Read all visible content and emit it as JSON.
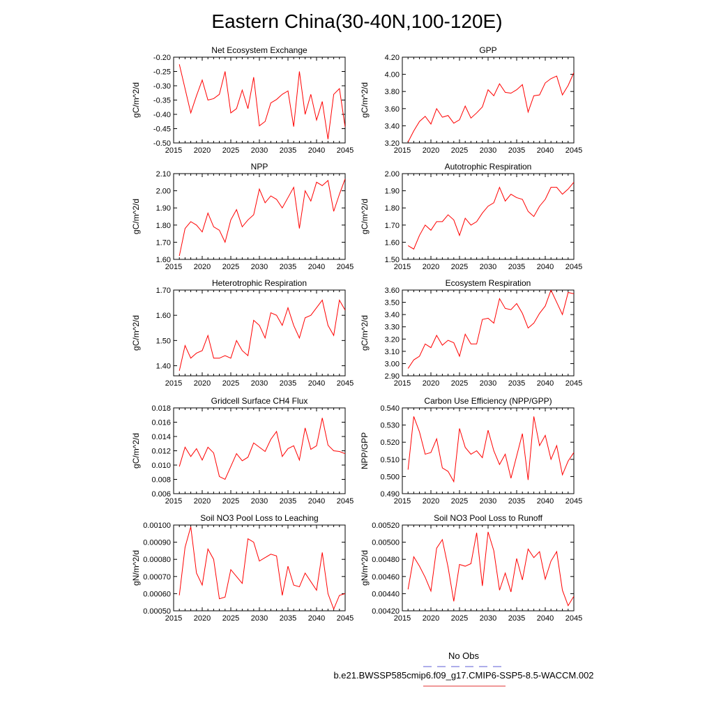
{
  "title": "Eastern China(30-40N,100-120E)",
  "legend": {
    "entries": [
      {
        "label": "No Obs",
        "color": "#5b5bd6",
        "style": "dashed"
      },
      {
        "label": "b.e21.BWSSP585cmip6.f09_g17.CMIP6-SSP5-8.5-WACCM.002",
        "color": "#e03030",
        "style": "solid"
      }
    ]
  },
  "chart_data": [
    {
      "type": "line",
      "title": "Net Ecosystem Exchange",
      "ylabel": "gC/m^2/d",
      "xlim": [
        2015,
        2045
      ],
      "ylim": [
        -0.5,
        -0.2
      ],
      "xticks": [
        2015,
        2020,
        2025,
        2030,
        2035,
        2040,
        2045
      ],
      "yticks": [
        "-0.20",
        "-0.25",
        "-0.30",
        "-0.35",
        "-0.40",
        "-0.45",
        "-0.50"
      ],
      "color": "#ff0000",
      "x": [
        2016,
        2017,
        2018,
        2019,
        2020,
        2021,
        2022,
        2023,
        2024,
        2025,
        2026,
        2027,
        2028,
        2029,
        2030,
        2031,
        2032,
        2033,
        2034,
        2035,
        2036,
        2037,
        2038,
        2039,
        2040,
        2041,
        2042,
        2043,
        2044,
        2045
      ],
      "values": [
        -0.225,
        -0.31,
        -0.395,
        -0.335,
        -0.28,
        -0.35,
        -0.345,
        -0.33,
        -0.25,
        -0.395,
        -0.38,
        -0.315,
        -0.38,
        -0.27,
        -0.44,
        -0.425,
        -0.36,
        -0.348,
        -0.33,
        -0.318,
        -0.443,
        -0.25,
        -0.4,
        -0.33,
        -0.42,
        -0.355,
        -0.487,
        -0.33,
        -0.31,
        -0.445
      ]
    },
    {
      "type": "line",
      "title": "GPP",
      "ylabel": "gC/m^2/d",
      "xlim": [
        2015,
        2045
      ],
      "ylim": [
        3.2,
        4.2
      ],
      "xticks": [
        2015,
        2020,
        2025,
        2030,
        2035,
        2040,
        2045
      ],
      "yticks": [
        "3.20",
        "3.40",
        "3.60",
        "3.80",
        "4.00",
        "4.20"
      ],
      "color": "#ff0000",
      "x": [
        2016,
        2017,
        2018,
        2019,
        2020,
        2021,
        2022,
        2023,
        2024,
        2025,
        2026,
        2027,
        2028,
        2029,
        2030,
        2031,
        2032,
        2033,
        2034,
        2035,
        2036,
        2037,
        2038,
        2039,
        2040,
        2041,
        2042,
        2043,
        2044,
        2045
      ],
      "values": [
        3.21,
        3.34,
        3.45,
        3.51,
        3.42,
        3.6,
        3.5,
        3.52,
        3.43,
        3.47,
        3.63,
        3.49,
        3.55,
        3.62,
        3.82,
        3.75,
        3.89,
        3.79,
        3.78,
        3.82,
        3.88,
        3.56,
        3.75,
        3.76,
        3.9,
        3.95,
        3.98,
        3.76,
        3.87,
        4.02
      ]
    },
    {
      "type": "line",
      "title": "NPP",
      "ylabel": "gC/m^2/d",
      "xlim": [
        2015,
        2045
      ],
      "ylim": [
        1.6,
        2.1
      ],
      "xticks": [
        2015,
        2020,
        2025,
        2030,
        2035,
        2040,
        2045
      ],
      "yticks": [
        "1.60",
        "1.70",
        "1.80",
        "1.90",
        "2.00",
        "2.10"
      ],
      "color": "#ff0000",
      "x": [
        2016,
        2017,
        2018,
        2019,
        2020,
        2021,
        2022,
        2023,
        2024,
        2025,
        2026,
        2027,
        2028,
        2029,
        2030,
        2031,
        2032,
        2033,
        2034,
        2035,
        2036,
        2037,
        2038,
        2039,
        2040,
        2041,
        2042,
        2043,
        2044,
        2045
      ],
      "values": [
        1.62,
        1.78,
        1.82,
        1.8,
        1.76,
        1.87,
        1.79,
        1.77,
        1.7,
        1.83,
        1.89,
        1.79,
        1.83,
        1.86,
        2.01,
        1.93,
        1.97,
        1.95,
        1.9,
        1.96,
        2.02,
        1.78,
        2.0,
        1.94,
        2.05,
        2.03,
        2.06,
        1.88,
        1.98,
        2.07
      ]
    },
    {
      "type": "line",
      "title": "Autotrophic Respiration",
      "ylabel": "gC/m^2/d",
      "xlim": [
        2015,
        2045
      ],
      "ylim": [
        1.5,
        2.0
      ],
      "xticks": [
        2015,
        2020,
        2025,
        2030,
        2035,
        2040,
        2045
      ],
      "yticks": [
        "1.50",
        "1.60",
        "1.70",
        "1.80",
        "1.90",
        "2.00"
      ],
      "color": "#ff0000",
      "x": [
        2016,
        2017,
        2018,
        2019,
        2020,
        2021,
        2022,
        2023,
        2024,
        2025,
        2026,
        2027,
        2028,
        2029,
        2030,
        2031,
        2032,
        2033,
        2034,
        2035,
        2036,
        2037,
        2038,
        2039,
        2040,
        2041,
        2042,
        2043,
        2044,
        2045
      ],
      "values": [
        1.58,
        1.56,
        1.64,
        1.7,
        1.67,
        1.72,
        1.72,
        1.76,
        1.73,
        1.64,
        1.74,
        1.7,
        1.72,
        1.77,
        1.81,
        1.83,
        1.92,
        1.84,
        1.88,
        1.86,
        1.85,
        1.78,
        1.75,
        1.81,
        1.85,
        1.92,
        1.92,
        1.88,
        1.91,
        1.95
      ]
    },
    {
      "type": "line",
      "title": "Heterotrophic Respiration",
      "ylabel": "gC/m^2/d",
      "xlim": [
        2015,
        2045
      ],
      "ylim": [
        1.36,
        1.7
      ],
      "xticks": [
        2015,
        2020,
        2025,
        2030,
        2035,
        2040,
        2045
      ],
      "yticks": [
        "1.40",
        "1.50",
        "1.60",
        "1.70"
      ],
      "color": "#ff0000",
      "x": [
        2016,
        2017,
        2018,
        2019,
        2020,
        2021,
        2022,
        2023,
        2024,
        2025,
        2026,
        2027,
        2028,
        2029,
        2030,
        2031,
        2032,
        2033,
        2034,
        2035,
        2036,
        2037,
        2038,
        2039,
        2040,
        2041,
        2042,
        2043,
        2044,
        2045
      ],
      "values": [
        1.38,
        1.48,
        1.43,
        1.45,
        1.46,
        1.52,
        1.43,
        1.43,
        1.44,
        1.43,
        1.5,
        1.46,
        1.44,
        1.58,
        1.56,
        1.51,
        1.61,
        1.6,
        1.56,
        1.63,
        1.56,
        1.51,
        1.59,
        1.6,
        1.63,
        1.66,
        1.56,
        1.52,
        1.66,
        1.62
      ]
    },
    {
      "type": "line",
      "title": "Ecosystem Respiration",
      "ylabel": "gC/m^2/d",
      "xlim": [
        2015,
        2045
      ],
      "ylim": [
        2.9,
        3.6
      ],
      "xticks": [
        2015,
        2020,
        2025,
        2030,
        2035,
        2040,
        2045
      ],
      "yticks": [
        "2.90",
        "3.00",
        "3.10",
        "3.20",
        "3.30",
        "3.40",
        "3.50",
        "3.60"
      ],
      "color": "#ff0000",
      "x": [
        2016,
        2017,
        2018,
        2019,
        2020,
        2021,
        2022,
        2023,
        2024,
        2025,
        2026,
        2027,
        2028,
        2029,
        2030,
        2031,
        2032,
        2033,
        2034,
        2035,
        2036,
        2037,
        2038,
        2039,
        2040,
        2041,
        2042,
        2043,
        2044,
        2045
      ],
      "values": [
        2.96,
        3.03,
        3.06,
        3.16,
        3.13,
        3.23,
        3.15,
        3.19,
        3.17,
        3.06,
        3.24,
        3.16,
        3.16,
        3.36,
        3.37,
        3.33,
        3.53,
        3.45,
        3.44,
        3.49,
        3.41,
        3.29,
        3.33,
        3.41,
        3.47,
        3.6,
        3.5,
        3.4,
        3.58,
        3.57
      ]
    },
    {
      "type": "line",
      "title": "Gridcell Surface CH4 Flux",
      "ylabel": "gC/m^2/d",
      "xlim": [
        2015,
        2045
      ],
      "ylim": [
        0.006,
        0.018
      ],
      "xticks": [
        2015,
        2020,
        2025,
        2030,
        2035,
        2040,
        2045
      ],
      "yticks": [
        "0.006",
        "0.008",
        "0.010",
        "0.012",
        "0.014",
        "0.016",
        "0.018"
      ],
      "color": "#ff0000",
      "x": [
        2016,
        2017,
        2018,
        2019,
        2020,
        2021,
        2022,
        2023,
        2024,
        2025,
        2026,
        2027,
        2028,
        2029,
        2030,
        2031,
        2032,
        2033,
        2034,
        2035,
        2036,
        2037,
        2038,
        2039,
        2040,
        2041,
        2042,
        2043,
        2044,
        2045
      ],
      "values": [
        0.0098,
        0.0125,
        0.0112,
        0.0123,
        0.0107,
        0.0125,
        0.0117,
        0.0084,
        0.008,
        0.0098,
        0.0116,
        0.0106,
        0.0111,
        0.0131,
        0.0125,
        0.0119,
        0.0136,
        0.0147,
        0.0112,
        0.0123,
        0.0127,
        0.0107,
        0.0152,
        0.0122,
        0.0127,
        0.0166,
        0.0128,
        0.012,
        0.0119,
        0.0116
      ]
    },
    {
      "type": "line",
      "title": "Carbon Use Efficiency (NPP/GPP)",
      "ylabel": "NPP/GPP",
      "xlim": [
        2015,
        2045
      ],
      "ylim": [
        0.49,
        0.54
      ],
      "xticks": [
        2015,
        2020,
        2025,
        2030,
        2035,
        2040,
        2045
      ],
      "yticks": [
        "0.490",
        "0.500",
        "0.510",
        "0.520",
        "0.530",
        "0.540"
      ],
      "color": "#ff0000",
      "x": [
        2016,
        2017,
        2018,
        2019,
        2020,
        2021,
        2022,
        2023,
        2024,
        2025,
        2026,
        2027,
        2028,
        2029,
        2030,
        2031,
        2032,
        2033,
        2034,
        2035,
        2036,
        2037,
        2038,
        2039,
        2040,
        2041,
        2042,
        2043,
        2044,
        2045
      ],
      "values": [
        0.504,
        0.535,
        0.526,
        0.513,
        0.514,
        0.522,
        0.505,
        0.503,
        0.497,
        0.528,
        0.517,
        0.513,
        0.515,
        0.511,
        0.527,
        0.515,
        0.507,
        0.513,
        0.499,
        0.512,
        0.525,
        0.498,
        0.535,
        0.518,
        0.524,
        0.51,
        0.518,
        0.501,
        0.509,
        0.514
      ]
    },
    {
      "type": "line",
      "title": "Soil NO3 Pool Loss to Leaching",
      "ylabel": "gN/m^2/d",
      "xlim": [
        2015,
        2045
      ],
      "ylim": [
        0.0005,
        0.001
      ],
      "xticks": [
        2015,
        2020,
        2025,
        2030,
        2035,
        2040,
        2045
      ],
      "yticks": [
        "0.00050",
        "0.00060",
        "0.00070",
        "0.00080",
        "0.00090",
        "0.00100"
      ],
      "color": "#ff0000",
      "x": [
        2016,
        2017,
        2018,
        2019,
        2020,
        2021,
        2022,
        2023,
        2024,
        2025,
        2026,
        2027,
        2028,
        2029,
        2030,
        2031,
        2032,
        2033,
        2034,
        2035,
        2036,
        2037,
        2038,
        2039,
        2040,
        2041,
        2042,
        2043,
        2044,
        2045
      ],
      "values": [
        0.00059,
        0.00087,
        0.00099,
        0.00072,
        0.00065,
        0.00086,
        0.0008,
        0.00057,
        0.00058,
        0.00074,
        0.0007,
        0.00066,
        0.00092,
        0.0009,
        0.00079,
        0.00081,
        0.00083,
        0.00082,
        0.00059,
        0.00076,
        0.00065,
        0.00064,
        0.00072,
        0.00067,
        0.00062,
        0.00084,
        0.0006,
        0.00051,
        0.00059,
        0.0006
      ]
    },
    {
      "type": "line",
      "title": "Soil NO3 Pool Loss to Runoff",
      "ylabel": "gN/m^2/d",
      "xlim": [
        2015,
        2045
      ],
      "ylim": [
        0.0042,
        0.0052
      ],
      "xticks": [
        2015,
        2020,
        2025,
        2030,
        2035,
        2040,
        2045
      ],
      "yticks": [
        "0.00420",
        "0.00440",
        "0.00460",
        "0.00480",
        "0.00500",
        "0.00520"
      ],
      "color": "#ff0000",
      "x": [
        2016,
        2017,
        2018,
        2019,
        2020,
        2021,
        2022,
        2023,
        2024,
        2025,
        2026,
        2027,
        2028,
        2029,
        2030,
        2031,
        2032,
        2033,
        2034,
        2035,
        2036,
        2037,
        2038,
        2039,
        2040,
        2041,
        2042,
        2043,
        2044,
        2045
      ],
      "values": [
        0.00445,
        0.00483,
        0.00472,
        0.00459,
        0.00443,
        0.00493,
        0.00503,
        0.00471,
        0.00431,
        0.00474,
        0.00472,
        0.00475,
        0.00511,
        0.00449,
        0.00512,
        0.0049,
        0.00444,
        0.00464,
        0.00442,
        0.00481,
        0.00456,
        0.00492,
        0.00482,
        0.00489,
        0.00457,
        0.00478,
        0.00489,
        0.00444,
        0.00426,
        0.00437
      ]
    }
  ]
}
